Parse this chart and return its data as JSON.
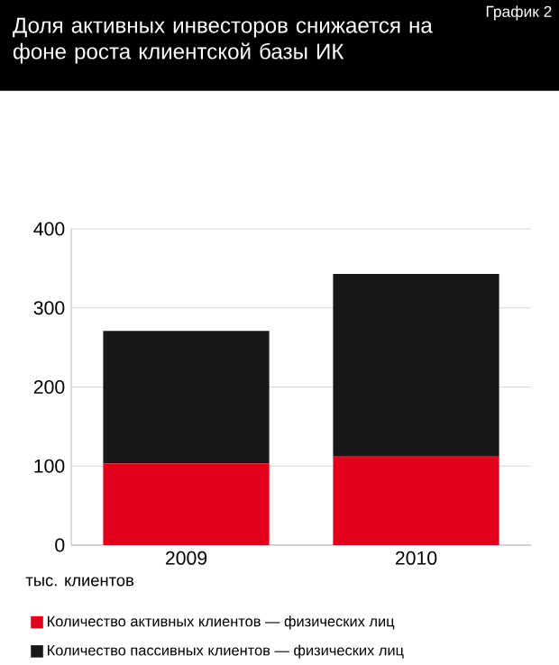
{
  "chart_data": {
    "type": "bar",
    "stacked": true,
    "title": "Доля  активных инвесторов снижается на фоне роста клиентской базы ИК",
    "ylabel": "тыс. клиентов",
    "annotations": [
      "График 2"
    ],
    "categories": [
      "2009",
      "2010"
    ],
    "series": [
      {
        "name": "Количество активных клиентов — физических лиц",
        "color": "#e0001b",
        "values": [
          103,
          112
        ]
      },
      {
        "name": "Количество пассивных клиентов — физических лиц",
        "color": "#1a1718",
        "values": [
          168,
          231
        ]
      }
    ],
    "ylim": [
      0,
      400
    ],
    "yticks": [
      0,
      100,
      200,
      300,
      400
    ],
    "grid": "y",
    "legend": "bottom"
  }
}
